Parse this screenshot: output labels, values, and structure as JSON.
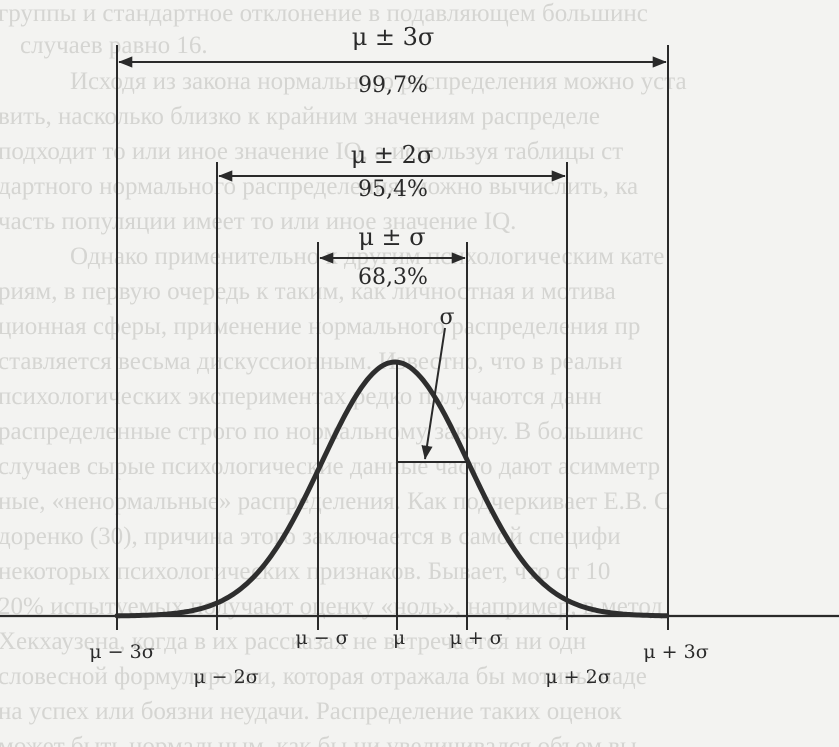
{
  "bands": [
    {
      "name": "three-sigma",
      "label": "μ ± 3σ",
      "percent": "99,7%"
    },
    {
      "name": "two-sigma",
      "label": "μ ± 2σ",
      "percent": "95,4%"
    },
    {
      "name": "one-sigma",
      "label": "μ ± σ",
      "percent": "68,3%"
    }
  ],
  "sigma_label": "σ",
  "axis_labels": [
    "μ − 3σ",
    "μ − 2σ",
    "μ − σ",
    "μ",
    "μ + σ",
    "μ + 2σ",
    "μ + 3σ"
  ],
  "background_text": [
    "группы и стандартное отклонение в подавляющем большинс",
    "случаев равно 16.",
    "Исходя из закона нормального распределения можно уста",
    "вить, насколько близко к крайним значениям распределе",
    "подходит то или иное значение IQ, а используя таблицы ст",
    "дартного нормального распределения, можно вычислить, ка",
    "часть популяции имеет то или иное значение IQ.",
    "Однако применительно к другим психологическим кате",
    "риям, в первую очередь к таким, как личностная и мотива",
    "ционная сферы, применение нормального распределения пр",
    "ставляется весьма дискуссионным. Известно, что в реальн",
    "психологических экспериментах редко получаются данн",
    "распределенные строго по нормальному закону. В большинс",
    "случаев сырые психологические данные часто дают асимметр",
    "ные, «ненормальные» распределения. Как подчеркивает Е.В. С",
    "доренко (30), причина этого заключается в самой специфи",
    "некоторых психологических признаков. Бывает, что от 10",
    "20% испытуемых получают оценку «ноль», например, в метод",
    "Хекхаузена, когда в их рассказах не встречается ни одн",
    "словесной формулировки, которая отражала бы мотивы наде",
    "на успех или боязни неудачи. Распределение таких оценок",
    "может быть нормальным, как бы ни увеличивался объем вы"
  ]
}
